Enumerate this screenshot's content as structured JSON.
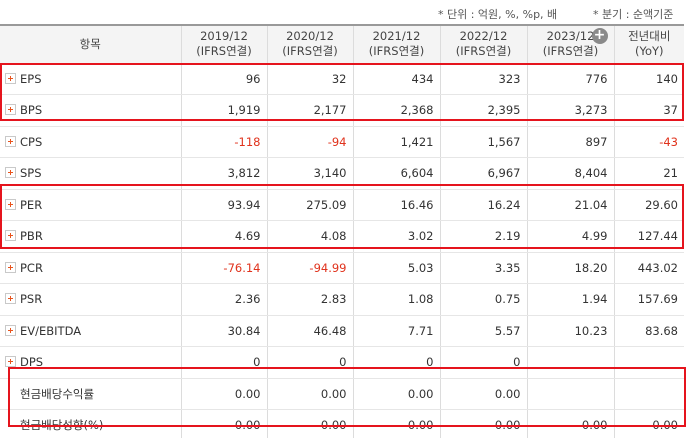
{
  "notes": {
    "unit": "* 단위 : 억원, %, %p, 배",
    "quarter": "* 분기 : 순액기준"
  },
  "header": {
    "item_label": "항목",
    "columns": [
      {
        "period": "2019/12",
        "std": "(IFRS연결)"
      },
      {
        "period": "2020/12",
        "std": "(IFRS연결)"
      },
      {
        "period": "2021/12",
        "std": "(IFRS연결)"
      },
      {
        "period": "2022/12",
        "std": "(IFRS연결)"
      },
      {
        "period": "2023/12",
        "std": "(IFRS연결)"
      }
    ],
    "yoy_label": "전년대비",
    "yoy_sub": "(YoY)",
    "add_icon": "plus-circle-icon"
  },
  "colors": {
    "negative": "#e0321c",
    "highlight": "#e5141d",
    "expand_icon": "#e8541e"
  },
  "rows": [
    {
      "label": "EPS",
      "expand": true,
      "values": [
        "96",
        "32",
        "434",
        "323",
        "776",
        "140"
      ],
      "neg": []
    },
    {
      "label": "BPS",
      "expand": true,
      "values": [
        "1,919",
        "2,177",
        "2,368",
        "2,395",
        "3,273",
        "37"
      ],
      "neg": []
    },
    {
      "label": "CPS",
      "expand": true,
      "values": [
        "-118",
        "-94",
        "1,421",
        "1,567",
        "897",
        "-43"
      ],
      "neg": [
        0,
        1,
        5
      ]
    },
    {
      "label": "SPS",
      "expand": true,
      "values": [
        "3,812",
        "3,140",
        "6,604",
        "6,967",
        "8,404",
        "21"
      ],
      "neg": []
    },
    {
      "label": "PER",
      "expand": true,
      "values": [
        "93.94",
        "275.09",
        "16.46",
        "16.24",
        "21.04",
        "29.60"
      ],
      "neg": []
    },
    {
      "label": "PBR",
      "expand": true,
      "values": [
        "4.69",
        "4.08",
        "3.02",
        "2.19",
        "4.99",
        "127.44"
      ],
      "neg": []
    },
    {
      "label": "PCR",
      "expand": true,
      "values": [
        "-76.14",
        "-94.99",
        "5.03",
        "3.35",
        "18.20",
        "443.02"
      ],
      "neg": [
        0,
        1
      ]
    },
    {
      "label": "PSR",
      "expand": true,
      "values": [
        "2.36",
        "2.83",
        "1.08",
        "0.75",
        "1.94",
        "157.69"
      ],
      "neg": []
    },
    {
      "label": "EV/EBITDA",
      "expand": true,
      "values": [
        "30.84",
        "46.48",
        "7.71",
        "5.57",
        "10.23",
        "83.68"
      ],
      "neg": []
    },
    {
      "label": "DPS",
      "expand": true,
      "values": [
        "0",
        "0",
        "0",
        "0",
        "",
        ""
      ],
      "neg": []
    },
    {
      "label": "현금배당수익률",
      "expand": false,
      "values": [
        "0.00",
        "0.00",
        "0.00",
        "0.00",
        "",
        ""
      ],
      "neg": []
    },
    {
      "label": "현금배당성향(%)",
      "expand": false,
      "values": [
        "0.00",
        "0.00",
        "0.00",
        "0.00",
        "0.00",
        "0.00"
      ],
      "neg": []
    }
  ]
}
